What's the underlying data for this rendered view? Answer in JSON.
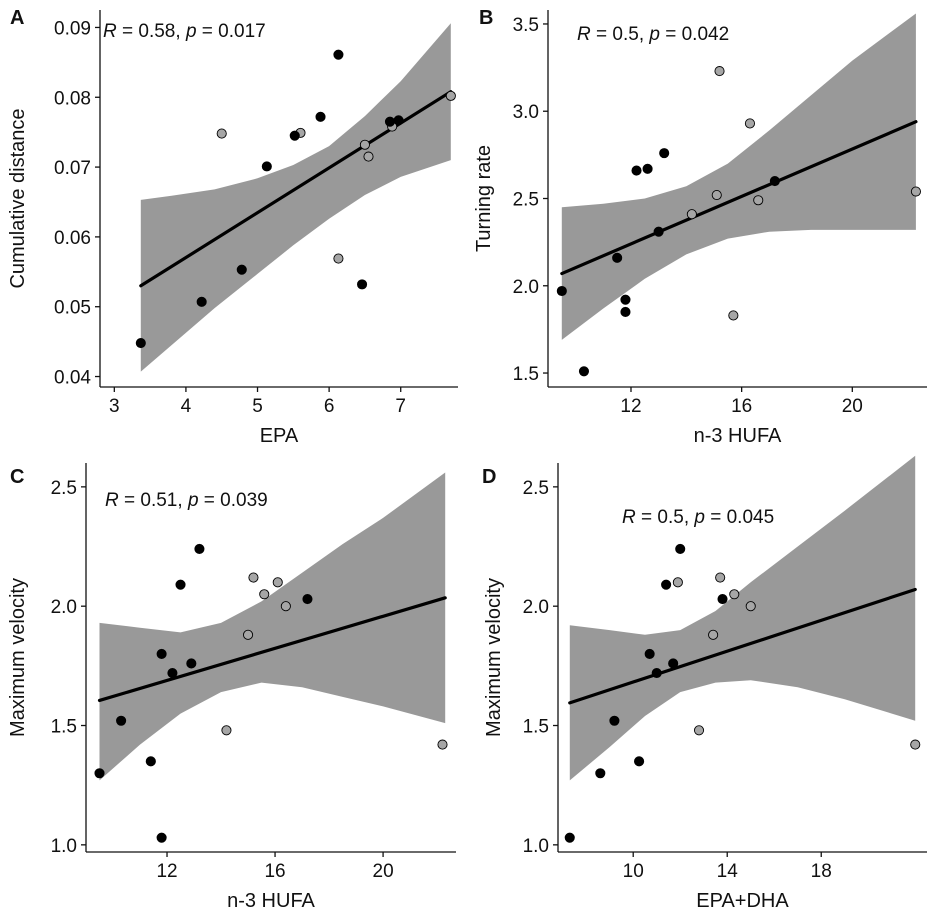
{
  "chart_data": [
    {
      "panel": "A",
      "type": "scatter",
      "xlabel": "EPA",
      "ylabel": "Cumulative distance",
      "xlim": [
        2.8,
        7.8
      ],
      "ylim": [
        0.0385,
        0.0925
      ],
      "xticks": [
        3,
        4,
        5,
        6,
        7
      ],
      "yticks": [
        0.04,
        0.05,
        0.06,
        0.07,
        0.08,
        0.09
      ],
      "ytick_labels": [
        "0.04",
        "0.05",
        "0.06",
        "0.07",
        "0.08",
        "0.09"
      ],
      "stat": {
        "r_label": "R",
        "r_value": "0.58",
        "p_label": "p",
        "p_value": "0.017"
      },
      "fit": {
        "x": [
          3.37,
          7.7
        ],
        "y": [
          0.053,
          0.0808
        ]
      },
      "band": {
        "x": [
          3.37,
          3.8,
          4.4,
          5.0,
          5.5,
          6.0,
          6.5,
          7.0,
          7.7
        ],
        "lower": [
          0.0407,
          0.0445,
          0.0498,
          0.0547,
          0.0588,
          0.0626,
          0.066,
          0.0686,
          0.071
        ],
        "upper": [
          0.0653,
          0.0659,
          0.0668,
          0.0684,
          0.0703,
          0.073,
          0.0773,
          0.0823,
          0.0906
        ]
      },
      "series": [
        {
          "name": "black",
          "color": "#000000",
          "points": [
            [
              3.37,
              0.0448
            ],
            [
              4.22,
              0.0507
            ],
            [
              4.78,
              0.0553
            ],
            [
              5.13,
              0.0701
            ],
            [
              5.52,
              0.0745
            ],
            [
              5.88,
              0.0772
            ],
            [
              6.13,
              0.0861
            ],
            [
              6.46,
              0.0532
            ],
            [
              6.85,
              0.0765
            ],
            [
              6.97,
              0.0767
            ]
          ]
        },
        {
          "name": "grey",
          "color": "#a6a6a6",
          "points": [
            [
              4.5,
              0.0748
            ],
            [
              5.6,
              0.0749
            ],
            [
              6.13,
              0.0569
            ],
            [
              6.5,
              0.0732
            ],
            [
              6.55,
              0.0715
            ],
            [
              6.88,
              0.0758
            ],
            [
              7.7,
              0.0802
            ]
          ]
        }
      ]
    },
    {
      "panel": "B",
      "type": "scatter",
      "xlabel": "n-3 HUFA",
      "ylabel": "Turning rate",
      "xlim": [
        9.0,
        22.7
      ],
      "ylim": [
        1.42,
        3.58
      ],
      "xticks": [
        12,
        16,
        20
      ],
      "yticks": [
        1.5,
        2.0,
        2.5,
        3.0,
        3.5
      ],
      "ytick_labels": [
        "1.5",
        "2.0",
        "2.5",
        "3.0",
        "3.5"
      ],
      "stat": {
        "r_label": "R",
        "r_value": "0.5",
        "p_label": "p",
        "p_value": "0.042"
      },
      "fit": {
        "x": [
          9.5,
          22.3
        ],
        "y": [
          2.07,
          2.94
        ]
      },
      "band": {
        "x": [
          9.5,
          11.0,
          12.5,
          14.0,
          15.5,
          17.0,
          18.5,
          20.0,
          22.3
        ],
        "lower": [
          1.69,
          1.87,
          2.04,
          2.18,
          2.27,
          2.31,
          2.32,
          2.32,
          2.32
        ],
        "upper": [
          2.45,
          2.47,
          2.5,
          2.57,
          2.7,
          2.89,
          3.09,
          3.29,
          3.56
        ]
      },
      "series": [
        {
          "name": "black",
          "color": "#000000",
          "points": [
            [
              9.5,
              1.97
            ],
            [
              10.3,
              1.51
            ],
            [
              11.5,
              2.16
            ],
            [
              11.8,
              1.92
            ],
            [
              11.8,
              1.85
            ],
            [
              12.2,
              2.66
            ],
            [
              12.6,
              2.67
            ],
            [
              13.0,
              2.31
            ],
            [
              13.2,
              2.76
            ],
            [
              17.2,
              2.6
            ]
          ]
        },
        {
          "name": "grey",
          "color": "#a6a6a6",
          "points": [
            [
              14.2,
              2.41
            ],
            [
              15.1,
              2.52
            ],
            [
              15.2,
              3.23
            ],
            [
              15.7,
              1.83
            ],
            [
              16.3,
              2.93
            ],
            [
              16.6,
              2.49
            ],
            [
              22.3,
              2.54
            ]
          ]
        }
      ]
    },
    {
      "panel": "C",
      "type": "scatter",
      "xlabel": "n-3 HUFA",
      "ylabel": "Maximum velocity",
      "xlim": [
        9.0,
        22.7
      ],
      "ylim": [
        0.97,
        2.6
      ],
      "xticks": [
        12,
        16,
        20
      ],
      "yticks": [
        1.0,
        1.5,
        2.0,
        2.5
      ],
      "ytick_labels": [
        "1.0",
        "1.5",
        "2.0",
        "2.5"
      ],
      "stat": {
        "r_label": "R",
        "r_value": "0.51",
        "p_label": "p",
        "p_value": "0.039"
      },
      "fit": {
        "x": [
          9.5,
          22.3
        ],
        "y": [
          1.605,
          2.035
        ]
      },
      "band": {
        "x": [
          9.5,
          11.0,
          12.5,
          14.0,
          15.5,
          17.0,
          18.5,
          20.0,
          22.3
        ],
        "lower": [
          1.27,
          1.42,
          1.55,
          1.64,
          1.68,
          1.66,
          1.62,
          1.58,
          1.51
        ],
        "upper": [
          1.93,
          1.91,
          1.89,
          1.93,
          2.02,
          2.14,
          2.26,
          2.37,
          2.56
        ]
      },
      "series": [
        {
          "name": "black",
          "color": "#000000",
          "points": [
            [
              9.5,
              1.3
            ],
            [
              10.3,
              1.52
            ],
            [
              11.4,
              1.35
            ],
            [
              11.8,
              1.8
            ],
            [
              12.2,
              1.72
            ],
            [
              12.5,
              2.09
            ],
            [
              12.9,
              1.76
            ],
            [
              13.2,
              2.24
            ],
            [
              17.2,
              2.03
            ],
            [
              11.8,
              1.03
            ]
          ]
        },
        {
          "name": "grey",
          "color": "#a6a6a6",
          "points": [
            [
              14.2,
              1.48
            ],
            [
              15.0,
              1.88
            ],
            [
              15.2,
              2.12
            ],
            [
              15.6,
              2.05
            ],
            [
              16.1,
              2.1
            ],
            [
              16.4,
              2.0
            ],
            [
              22.2,
              1.42
            ]
          ]
        }
      ]
    },
    {
      "panel": "D",
      "type": "scatter",
      "xlabel": "EPA+DHA",
      "ylabel": "Maximum velocity",
      "xlim": [
        6.8,
        22.5
      ],
      "ylim": [
        0.97,
        2.6
      ],
      "xticks": [
        10,
        14,
        18
      ],
      "yticks": [
        1.0,
        1.5,
        2.0,
        2.5
      ],
      "ytick_labels": [
        "1.0",
        "1.5",
        "2.0",
        "2.5"
      ],
      "stat": {
        "r_label": "R",
        "r_value": "0.5",
        "p_label": "p",
        "p_value": "0.045"
      },
      "fit": {
        "x": [
          7.3,
          22.0
        ],
        "y": [
          1.595,
          2.07
        ]
      },
      "band": {
        "x": [
          7.3,
          9.0,
          10.5,
          12.0,
          13.5,
          15.0,
          17.0,
          19.0,
          22.0
        ],
        "lower": [
          1.27,
          1.41,
          1.54,
          1.64,
          1.68,
          1.69,
          1.66,
          1.61,
          1.52
        ],
        "upper": [
          1.92,
          1.9,
          1.88,
          1.9,
          1.98,
          2.1,
          2.25,
          2.4,
          2.63
        ]
      },
      "series": [
        {
          "name": "black",
          "color": "#000000",
          "points": [
            [
              7.3,
              1.03
            ],
            [
              8.6,
              1.3
            ],
            [
              9.2,
              1.52
            ],
            [
              10.25,
              1.35
            ],
            [
              10.7,
              1.8
            ],
            [
              11.0,
              1.72
            ],
            [
              11.4,
              2.09
            ],
            [
              11.7,
              1.76
            ],
            [
              12.0,
              2.24
            ],
            [
              13.8,
              2.03
            ]
          ]
        },
        {
          "name": "grey",
          "color": "#a6a6a6",
          "points": [
            [
              11.9,
              2.1
            ],
            [
              12.8,
              1.48
            ],
            [
              13.4,
              1.88
            ],
            [
              13.7,
              2.12
            ],
            [
              14.3,
              2.05
            ],
            [
              15.0,
              2.0
            ],
            [
              22.0,
              1.42
            ]
          ]
        }
      ]
    }
  ],
  "style": {
    "band_color": "#999999",
    "line_color": "#000000",
    "axis_color": "#111111",
    "grey_point_color": "#a6a6a6",
    "black_point_color": "#000000"
  }
}
